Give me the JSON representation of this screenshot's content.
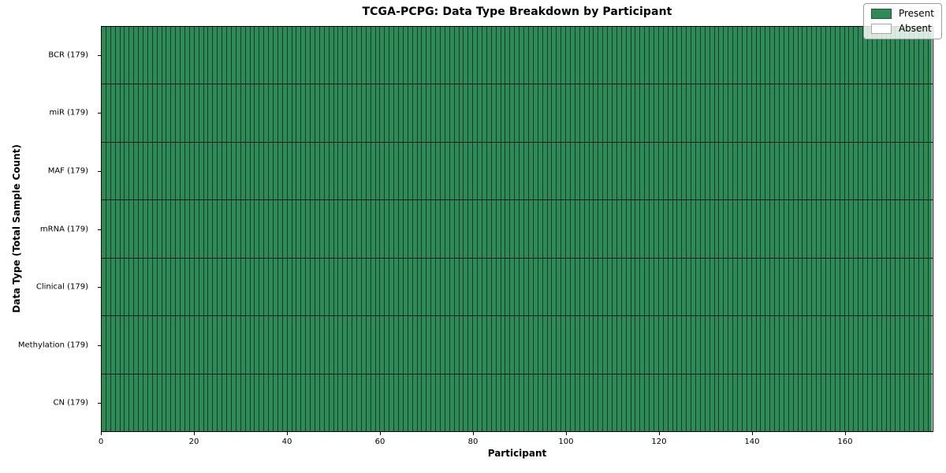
{
  "title": "TCGA-PCPG: Data Type Breakdown by Participant",
  "axes": {
    "x_label": "Participant",
    "y_label": "Data Type (Total Sample Count)",
    "x_ticks": [
      0,
      20,
      40,
      60,
      80,
      100,
      120,
      140,
      160
    ],
    "x_max": 179
  },
  "legend": {
    "position": "upper right",
    "items": [
      {
        "label": "Present",
        "color": "#2e8b57"
      },
      {
        "label": "Absent",
        "color": "#ffffff"
      }
    ]
  },
  "chart_data": {
    "type": "heatmap",
    "title": "TCGA-PCPG: Data Type Breakdown by Participant",
    "xlabel": "Participant",
    "ylabel": "Data Type (Total Sample Count)",
    "x_range": [
      0,
      179
    ],
    "x_ticks": [
      0,
      20,
      40,
      60,
      80,
      100,
      120,
      140,
      160
    ],
    "participants": 179,
    "value_encoding": {
      "1": "Present",
      "0": "Absent"
    },
    "grid": false,
    "legend_position": "upper right",
    "colors": {
      "present": "#2e8b57",
      "absent": "#ffffff",
      "cell_edge": "rgba(0,0,0,0.55)",
      "row_divider": "#1a1a1a"
    },
    "y_tick_label_format": "{label} ({total_samples})",
    "rows": [
      {
        "label": "BCR",
        "total_samples": 179,
        "present_count": 179,
        "absent_count": 0
      },
      {
        "label": "miR",
        "total_samples": 179,
        "present_count": 179,
        "absent_count": 0
      },
      {
        "label": "MAF",
        "total_samples": 179,
        "present_count": 179,
        "absent_count": 0
      },
      {
        "label": "mRNA",
        "total_samples": 179,
        "present_count": 179,
        "absent_count": 0
      },
      {
        "label": "Clinical",
        "total_samples": 179,
        "present_count": 179,
        "absent_count": 0
      },
      {
        "label": "Methylation",
        "total_samples": 179,
        "present_count": 179,
        "absent_count": 0
      },
      {
        "label": "CN",
        "total_samples": 179,
        "present_count": 179,
        "absent_count": 0
      }
    ],
    "summary": "Every one of the 179 participants is marked Present for all 7 data types"
  }
}
